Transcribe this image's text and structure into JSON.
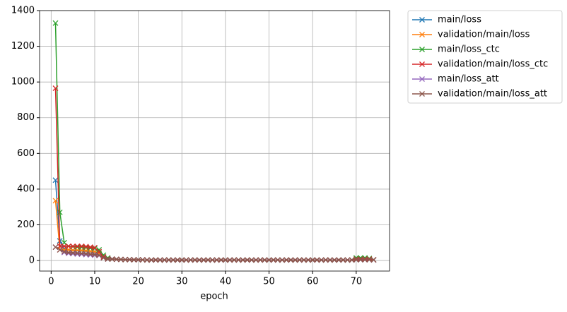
{
  "chart_data": {
    "type": "line",
    "xlabel": "epoch",
    "x": [
      1,
      2,
      3,
      4,
      5,
      6,
      7,
      8,
      9,
      10,
      11,
      12,
      13,
      14,
      15,
      16,
      17,
      18,
      19,
      20,
      21,
      22,
      23,
      24,
      25,
      26,
      27,
      28,
      29,
      30,
      31,
      32,
      33,
      34,
      35,
      36,
      37,
      38,
      39,
      40,
      41,
      42,
      43,
      44,
      45,
      46,
      47,
      48,
      49,
      50,
      51,
      52,
      53,
      54,
      55,
      56,
      57,
      58,
      59,
      60,
      61,
      62,
      63,
      64,
      65,
      66,
      67,
      68,
      69,
      70,
      71,
      72,
      73,
      74
    ],
    "series": [
      {
        "name": "main/loss",
        "color": "#1f77b4",
        "values": [
          450,
          110,
          65,
          60,
          58,
          56,
          55,
          53,
          50,
          48,
          42,
          20,
          10,
          8,
          7,
          6,
          5,
          5,
          4,
          4,
          4,
          3,
          3,
          3,
          3,
          3,
          3,
          3,
          3,
          3,
          3,
          3,
          3,
          3,
          3,
          3,
          3,
          3,
          3,
          3,
          3,
          3,
          3,
          3,
          3,
          3,
          3,
          3,
          3,
          3,
          3,
          3,
          3,
          3,
          3,
          3,
          3,
          3,
          3,
          3,
          3,
          3,
          3,
          3,
          3,
          3,
          3,
          3,
          3,
          8,
          8,
          8,
          8,
          4
        ]
      },
      {
        "name": "validation/main/loss",
        "color": "#ff7f0e",
        "values": [
          335,
          60,
          60,
          60,
          58,
          58,
          57,
          55,
          52,
          50,
          40,
          20,
          10,
          8,
          7,
          6,
          5,
          5,
          4,
          4,
          4,
          3,
          3,
          3,
          3,
          3,
          3,
          3,
          3,
          3,
          3,
          3,
          3,
          3,
          3,
          3,
          3,
          3,
          3,
          3,
          3,
          3,
          3,
          3,
          3,
          3,
          3,
          3,
          3,
          3,
          3,
          3,
          3,
          3,
          3,
          3,
          3,
          3,
          3,
          3,
          3,
          3,
          3,
          3,
          3,
          3,
          3,
          3,
          3,
          6,
          6,
          6,
          6,
          4
        ]
      },
      {
        "name": "main/loss_ctc",
        "color": "#2ca02c",
        "values": [
          1330,
          270,
          100,
          80,
          78,
          76,
          75,
          73,
          70,
          68,
          60,
          30,
          15,
          8,
          7,
          6,
          5,
          5,
          4,
          4,
          4,
          3,
          3,
          3,
          3,
          3,
          3,
          3,
          3,
          3,
          3,
          3,
          3,
          3,
          3,
          3,
          3,
          3,
          3,
          3,
          3,
          3,
          3,
          3,
          3,
          3,
          3,
          3,
          3,
          3,
          3,
          3,
          3,
          3,
          3,
          3,
          3,
          3,
          3,
          3,
          3,
          3,
          3,
          3,
          3,
          3,
          3,
          3,
          3,
          15,
          15,
          15,
          12,
          4
        ]
      },
      {
        "name": "validation/main/loss_ctc",
        "color": "#d62728",
        "values": [
          965,
          80,
          80,
          80,
          80,
          80,
          80,
          78,
          75,
          72,
          50,
          20,
          10,
          8,
          7,
          6,
          5,
          5,
          4,
          4,
          4,
          3,
          3,
          3,
          3,
          3,
          3,
          3,
          3,
          3,
          3,
          3,
          3,
          3,
          3,
          3,
          3,
          3,
          3,
          3,
          3,
          3,
          3,
          3,
          3,
          3,
          3,
          3,
          3,
          3,
          3,
          3,
          3,
          3,
          3,
          3,
          3,
          3,
          3,
          3,
          3,
          3,
          3,
          3,
          3,
          3,
          3,
          3,
          3,
          8,
          8,
          8,
          8,
          4
        ]
      },
      {
        "name": "main/loss_att",
        "color": "#9467bd",
        "values": [
          75,
          60,
          45,
          40,
          38,
          36,
          35,
          33,
          31,
          30,
          28,
          15,
          8,
          8,
          7,
          6,
          5,
          5,
          4,
          4,
          4,
          3,
          3,
          3,
          3,
          3,
          3,
          3,
          3,
          3,
          3,
          3,
          3,
          3,
          3,
          3,
          3,
          3,
          3,
          3,
          3,
          3,
          3,
          3,
          3,
          3,
          3,
          3,
          3,
          3,
          3,
          3,
          3,
          3,
          3,
          3,
          3,
          3,
          3,
          3,
          3,
          3,
          3,
          3,
          3,
          3,
          3,
          3,
          3,
          4,
          4,
          4,
          4,
          3
        ]
      },
      {
        "name": "validation/main/loss_att",
        "color": "#8c564b",
        "values": [
          75,
          60,
          50,
          45,
          43,
          42,
          40,
          38,
          36,
          34,
          30,
          15,
          8,
          8,
          7,
          6,
          5,
          5,
          4,
          4,
          4,
          3,
          3,
          3,
          3,
          3,
          3,
          3,
          3,
          3,
          3,
          3,
          3,
          3,
          3,
          3,
          3,
          3,
          3,
          3,
          3,
          3,
          3,
          3,
          3,
          3,
          3,
          3,
          3,
          3,
          3,
          3,
          3,
          3,
          3,
          3,
          3,
          3,
          3,
          3,
          3,
          3,
          3,
          3,
          3,
          3,
          3,
          3,
          3,
          4,
          4,
          4,
          4,
          3
        ]
      }
    ],
    "xlim": [
      -2.65,
      77.65
    ],
    "xticks": [
      0,
      10,
      20,
      30,
      40,
      50,
      60,
      70
    ],
    "ylim": [
      -59,
      1400
    ],
    "yticks": [
      0,
      200,
      400,
      600,
      800,
      1000,
      1200,
      1400
    ],
    "grid": true,
    "legend": "outside-upper-right"
  }
}
